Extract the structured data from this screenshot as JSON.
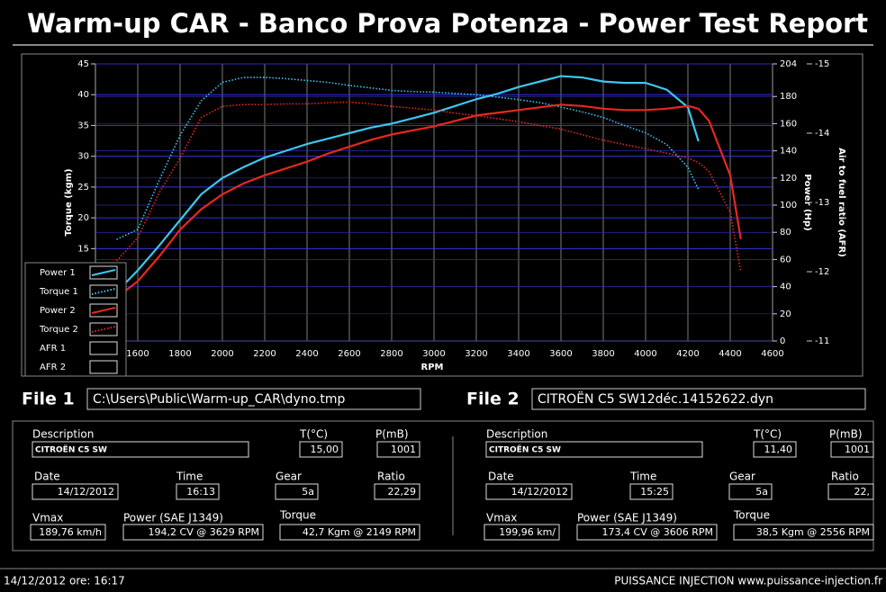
{
  "header": {
    "title": "Warm-up CAR  - Banco Prova Potenza -  Power Test Report"
  },
  "chart_data": {
    "type": "line",
    "x_label": "RPM",
    "y_label": "Torque (kgm)",
    "y2_label": "Power (Hp)",
    "y3_label": "Air to fuel ratio (AFR)",
    "x": [
      1500,
      1600,
      1700,
      1800,
      1900,
      2000,
      2100,
      2200,
      2300,
      2400,
      2500,
      2600,
      2700,
      2800,
      2900,
      3000,
      3100,
      3200,
      3300,
      3400,
      3500,
      3600,
      3700,
      3800,
      3900,
      4000,
      4100,
      4200,
      4250,
      4300,
      4400,
      4450
    ],
    "xlim": [
      1400,
      4600
    ],
    "xticks": [
      1600,
      1800,
      2000,
      2200,
      2400,
      2600,
      2800,
      3000,
      3200,
      3400,
      3600,
      3800,
      4000,
      4200,
      4400,
      4600
    ],
    "ylim": [
      0,
      45
    ],
    "yticks": [
      15,
      20,
      25,
      30,
      35,
      40,
      45
    ],
    "y2lim": [
      0,
      204
    ],
    "y2ticks": [
      0,
      20,
      40,
      60,
      80,
      100,
      120,
      140,
      160,
      180,
      204
    ],
    "y3lim": [
      -11,
      -15
    ],
    "y3ticks": [
      -15,
      -14,
      -13,
      -12,
      -11
    ],
    "grid": true,
    "series": [
      {
        "name": "Power 1",
        "color": "#3ec6ef",
        "style": "solid",
        "axis": "y2",
        "values": [
          36,
          52,
          70,
          89,
          108,
          120,
          128,
          135,
          140,
          145,
          149,
          153,
          157,
          160,
          164,
          168,
          173,
          178,
          182,
          187,
          191,
          195,
          194,
          191,
          190,
          190,
          185,
          172,
          147,
          null,
          null,
          null
        ]
      },
      {
        "name": "Torque 1",
        "color": "#3ec6ef",
        "style": "dotted",
        "axis": "y",
        "values": [
          16.5,
          18.1,
          26,
          33.4,
          39,
          42,
          42.8,
          42.8,
          42.6,
          42.3,
          42,
          41.5,
          41.1,
          40.7,
          40.5,
          40.4,
          40.2,
          40,
          39.6,
          39.2,
          38.7,
          38,
          37.2,
          36.3,
          35,
          33.8,
          31.9,
          28.2,
          24.6,
          null,
          null,
          null
        ]
      },
      {
        "name": "Power 2",
        "color": "#e8281e",
        "style": "solid",
        "axis": "y2",
        "values": [
          32,
          44,
          62,
          82,
          97,
          108,
          116,
          122,
          127,
          132,
          138,
          143,
          148,
          152,
          155,
          158,
          162,
          166,
          168,
          170,
          172,
          174,
          173,
          171,
          170,
          170,
          171,
          173,
          171,
          162,
          122,
          75
        ]
      },
      {
        "name": "Torque 2",
        "color": "#e8281e",
        "style": "dotted",
        "axis": "y",
        "values": [
          13,
          16.8,
          24,
          29.7,
          36.3,
          38.1,
          38.4,
          38.4,
          38.5,
          38.5,
          38.7,
          38.8,
          38.5,
          38.1,
          37.8,
          37.5,
          37,
          36.6,
          36.1,
          35.6,
          35,
          34.4,
          33.5,
          32.6,
          31.9,
          31.2,
          30.5,
          29.7,
          29,
          27.5,
          20.9,
          11.3
        ]
      },
      {
        "name": "AFR 1",
        "color": "#ffffff",
        "style": "solid",
        "axis": "y3",
        "values": [
          null,
          null,
          null,
          null,
          null,
          null,
          null,
          null,
          null,
          null,
          null,
          null,
          null,
          null,
          null,
          null,
          null,
          null,
          null,
          null,
          null,
          null,
          null,
          null,
          null,
          null,
          null,
          null,
          null,
          null,
          null,
          null
        ]
      },
      {
        "name": "AFR 2",
        "color": "#ffffff",
        "style": "solid",
        "axis": "y3",
        "values": [
          null,
          null,
          null,
          null,
          null,
          null,
          null,
          null,
          null,
          null,
          null,
          null,
          null,
          null,
          null,
          null,
          null,
          null,
          null,
          null,
          null,
          null,
          null,
          null,
          null,
          null,
          null,
          null,
          null,
          null,
          null,
          null
        ]
      }
    ]
  },
  "panels": [
    {
      "label": "File 1",
      "file": "C:\\Users\\Public\\Warm-up_CAR\\dyno.tmp",
      "fields": [
        {
          "label": "Description",
          "value": "CITROËN C5 SW"
        },
        {
          "label": "T(°C)",
          "value": "15,00"
        },
        {
          "label": "P(mB)",
          "value": "1001"
        },
        {
          "label": "Date",
          "value": "14/12/2012"
        },
        {
          "label": "Time",
          "value": "16:13"
        },
        {
          "label": "Gear",
          "value": "5a"
        },
        {
          "label": "Ratio",
          "value": "22,29"
        },
        {
          "label": "Vmax",
          "value": "189,76 km/h"
        },
        {
          "label": "Power (SAE J1349)",
          "value": "194,2 CV  @ 3629  RPM"
        },
        {
          "label": "Torque",
          "value": "42,7 Kgm  @ 2149  RPM"
        }
      ]
    },
    {
      "label": "File 2",
      "file": "CITROËN C5 SW12déc.14152622.dyn",
      "fields": [
        {
          "label": "Description",
          "value": "CITROËN C5 SW"
        },
        {
          "label": "T(°C)",
          "value": "11,40"
        },
        {
          "label": "P(mB)",
          "value": "1001"
        },
        {
          "label": "Date",
          "value": "14/12/2012"
        },
        {
          "label": "Time",
          "value": "15:25"
        },
        {
          "label": "Gear",
          "value": "5a"
        },
        {
          "label": "Ratio",
          "value": "22,"
        },
        {
          "label": "Vmax",
          "value": "199,96 km/"
        },
        {
          "label": "Power (SAE J1349)",
          "value": "173,4 CV  @ 3606  RPM"
        },
        {
          "label": "Torque",
          "value": "38,5 Kgm  @ 2556  RPM"
        }
      ]
    }
  ],
  "footer": {
    "left": "14/12/2012  ore: 16:17",
    "right": "PUISSANCE INJECTION www.puissance-injection.fr"
  }
}
